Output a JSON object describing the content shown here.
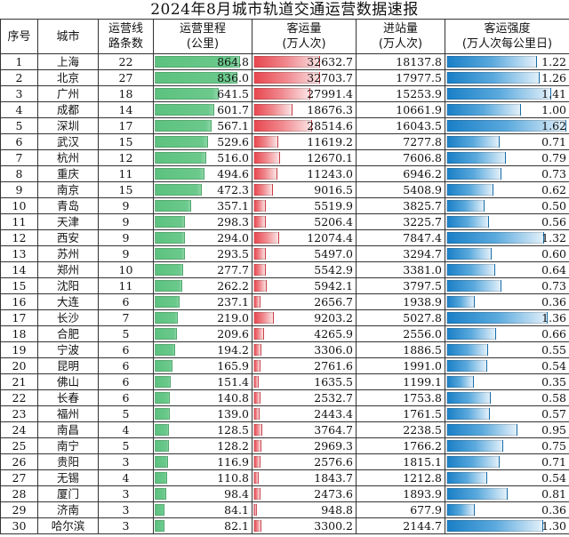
{
  "title": "2024年8月城市轨道交通运营数据速报",
  "headers": {
    "no": "序号",
    "city": "城市",
    "lines": "运营线路条数",
    "mileage": "运营里程(公里)",
    "ridership": "客运量(万人次)",
    "entries": "进站量(万人次)",
    "intensity": "客运强度(万人次每公里日)"
  },
  "header_lines": {
    "no": [
      "序号"
    ],
    "city": [
      "城市"
    ],
    "lines": [
      "运营线",
      "路条数"
    ],
    "mileage": [
      "运营里程",
      "(公里)"
    ],
    "ridership": [
      "客运量",
      "(万人次)"
    ],
    "entries": [
      "进站量",
      "(万人次)"
    ],
    "intensity": [
      "客运强度",
      "(万人次每公里日)"
    ]
  },
  "colors": {
    "mileage_bar": "#5cc27f",
    "ridership_bar": "#e8464e",
    "intensity_bar": "#1a7fc6"
  },
  "rows": [
    {
      "no": "1",
      "city": "上海",
      "lines": "22",
      "mileage": "864.8",
      "ridership": "32632.7",
      "entries": "18137.8",
      "intensity": "1.22"
    },
    {
      "no": "2",
      "city": "北京",
      "lines": "27",
      "mileage": "836.0",
      "ridership": "32703.7",
      "entries": "17977.5",
      "intensity": "1.26"
    },
    {
      "no": "3",
      "city": "广州",
      "lines": "18",
      "mileage": "641.5",
      "ridership": "27991.4",
      "entries": "15253.9",
      "intensity": "1.41"
    },
    {
      "no": "4",
      "city": "成都",
      "lines": "14",
      "mileage": "601.7",
      "ridership": "18676.3",
      "entries": "10661.9",
      "intensity": "1.00"
    },
    {
      "no": "5",
      "city": "深圳",
      "lines": "17",
      "mileage": "567.1",
      "ridership": "28514.6",
      "entries": "16043.5",
      "intensity": "1.62"
    },
    {
      "no": "6",
      "city": "武汉",
      "lines": "15",
      "mileage": "529.6",
      "ridership": "11619.2",
      "entries": "7277.8",
      "intensity": "0.71"
    },
    {
      "no": "7",
      "city": "杭州",
      "lines": "12",
      "mileage": "516.0",
      "ridership": "12670.1",
      "entries": "7606.8",
      "intensity": "0.79"
    },
    {
      "no": "8",
      "city": "重庆",
      "lines": "11",
      "mileage": "494.6",
      "ridership": "11243.0",
      "entries": "6946.2",
      "intensity": "0.73"
    },
    {
      "no": "9",
      "city": "南京",
      "lines": "15",
      "mileage": "472.3",
      "ridership": "9016.5",
      "entries": "5408.9",
      "intensity": "0.62"
    },
    {
      "no": "10",
      "city": "青岛",
      "lines": "9",
      "mileage": "357.1",
      "ridership": "5519.9",
      "entries": "3825.7",
      "intensity": "0.50"
    },
    {
      "no": "11",
      "city": "天津",
      "lines": "9",
      "mileage": "298.3",
      "ridership": "5206.4",
      "entries": "3225.7",
      "intensity": "0.56"
    },
    {
      "no": "12",
      "city": "西安",
      "lines": "9",
      "mileage": "294.0",
      "ridership": "12074.4",
      "entries": "7847.4",
      "intensity": "1.32"
    },
    {
      "no": "13",
      "city": "苏州",
      "lines": "9",
      "mileage": "293.5",
      "ridership": "5497.0",
      "entries": "3294.7",
      "intensity": "0.60"
    },
    {
      "no": "14",
      "city": "郑州",
      "lines": "10",
      "mileage": "277.7",
      "ridership": "5542.9",
      "entries": "3381.0",
      "intensity": "0.64"
    },
    {
      "no": "15",
      "city": "沈阳",
      "lines": "11",
      "mileage": "262.2",
      "ridership": "5942.1",
      "entries": "3797.5",
      "intensity": "0.73"
    },
    {
      "no": "16",
      "city": "大连",
      "lines": "6",
      "mileage": "237.1",
      "ridership": "2656.7",
      "entries": "1938.9",
      "intensity": "0.36"
    },
    {
      "no": "17",
      "city": "长沙",
      "lines": "7",
      "mileage": "219.0",
      "ridership": "9203.2",
      "entries": "5027.8",
      "intensity": "1.36"
    },
    {
      "no": "18",
      "city": "合肥",
      "lines": "5",
      "mileage": "209.6",
      "ridership": "4265.9",
      "entries": "2556.0",
      "intensity": "0.66"
    },
    {
      "no": "19",
      "city": "宁波",
      "lines": "6",
      "mileage": "194.2",
      "ridership": "3306.0",
      "entries": "1886.5",
      "intensity": "0.55"
    },
    {
      "no": "20",
      "city": "昆明",
      "lines": "6",
      "mileage": "165.9",
      "ridership": "2761.6",
      "entries": "1991.0",
      "intensity": "0.54"
    },
    {
      "no": "21",
      "city": "佛山",
      "lines": "6",
      "mileage": "151.4",
      "ridership": "1635.5",
      "entries": "1199.1",
      "intensity": "0.35"
    },
    {
      "no": "22",
      "city": "长春",
      "lines": "6",
      "mileage": "140.8",
      "ridership": "2532.7",
      "entries": "1753.8",
      "intensity": "0.58"
    },
    {
      "no": "23",
      "city": "福州",
      "lines": "5",
      "mileage": "139.0",
      "ridership": "2443.4",
      "entries": "1761.5",
      "intensity": "0.57"
    },
    {
      "no": "24",
      "city": "南昌",
      "lines": "4",
      "mileage": "128.5",
      "ridership": "3764.7",
      "entries": "2238.5",
      "intensity": "0.95"
    },
    {
      "no": "25",
      "city": "南宁",
      "lines": "5",
      "mileage": "128.2",
      "ridership": "2969.3",
      "entries": "1766.2",
      "intensity": "0.75"
    },
    {
      "no": "26",
      "city": "贵阳",
      "lines": "3",
      "mileage": "116.9",
      "ridership": "2576.6",
      "entries": "1815.1",
      "intensity": "0.71"
    },
    {
      "no": "27",
      "city": "无锡",
      "lines": "4",
      "mileage": "110.8",
      "ridership": "1843.7",
      "entries": "1212.8",
      "intensity": "0.54"
    },
    {
      "no": "28",
      "city": "厦门",
      "lines": "3",
      "mileage": "98.4",
      "ridership": "2473.6",
      "entries": "1893.9",
      "intensity": "0.81"
    },
    {
      "no": "29",
      "city": "济南",
      "lines": "3",
      "mileage": "84.1",
      "ridership": "948.8",
      "entries": "677.9",
      "intensity": "0.36"
    },
    {
      "no": "30",
      "city": "哈尔滨",
      "lines": "3",
      "mileage": "82.1",
      "ridership": "3300.2",
      "entries": "2144.7",
      "intensity": "1.30"
    }
  ]
}
